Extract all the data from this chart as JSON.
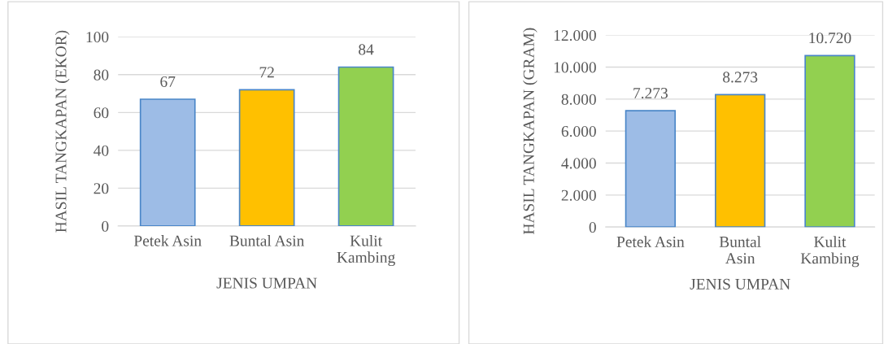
{
  "chart_data": [
    {
      "type": "bar",
      "xlabel": "JENIS UMPAN",
      "ylabel": "HASIL TANGKAPAN (EKOR)",
      "categories": [
        "Petek Asin",
        "Buntal Asin",
        "Kulit\nKambing"
      ],
      "values": [
        67,
        72,
        84
      ],
      "colors": [
        "#9dbce6",
        "#ffc000",
        "#92d050"
      ],
      "ylim": [
        0,
        100
      ],
      "yticks": [
        0,
        20,
        40,
        60,
        80,
        100
      ],
      "grid": "y",
      "data_labels": true
    },
    {
      "type": "bar",
      "xlabel": "JENIS UMPAN",
      "ylabel": "HASIL TANGKAPAN (GRAM)",
      "categories": [
        "Petek Asin",
        "Buntal\nAsin",
        "Kulit\nKambing"
      ],
      "values": [
        7273,
        8273,
        10720
      ],
      "colors": [
        "#9dbce6",
        "#ffc000",
        "#92d050"
      ],
      "ylim": [
        0,
        12000
      ],
      "yticks": [
        {
          "value": 0,
          "label": "0"
        },
        {
          "value": 2000,
          "label": "2.000"
        },
        {
          "value": 4000,
          "label": "4.000"
        },
        {
          "value": 6000,
          "label": "6.000"
        },
        {
          "value": 8000,
          "label": "8.000"
        },
        {
          "value": 10000,
          "label": "10.000"
        },
        {
          "value": 12000,
          "label": "12.000"
        }
      ],
      "grid": "y",
      "value_labels": [
        "7.273",
        "8.273",
        "10.720"
      ]
    }
  ]
}
